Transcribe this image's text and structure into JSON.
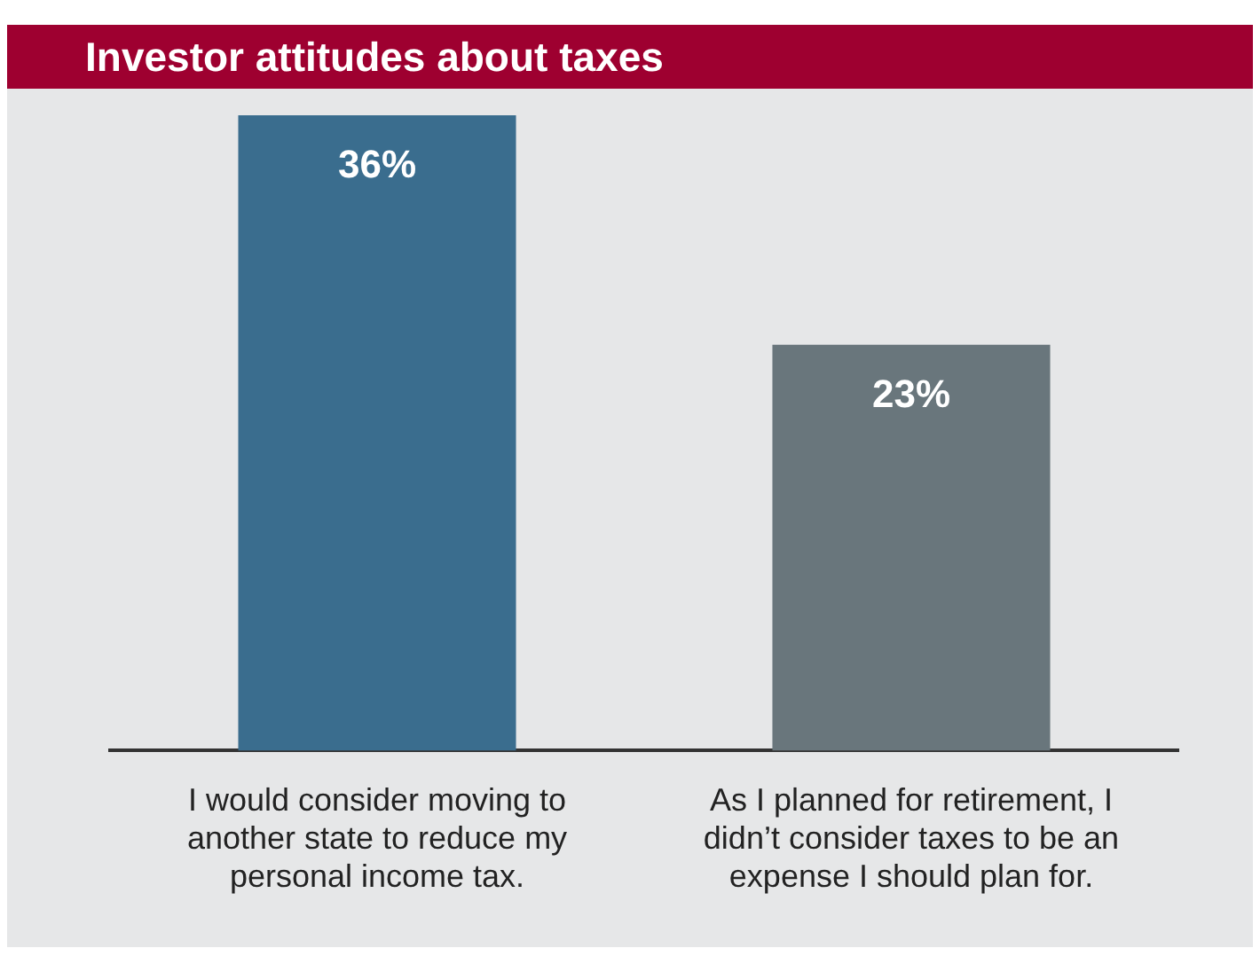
{
  "chart_data": {
    "type": "bar",
    "title": "Investor attitudes about taxes",
    "categories": [
      "I would consider moving to another state to reduce my personal income tax.",
      "As I planned for retirement, I didn’t consider taxes to be an expense I should plan for."
    ],
    "values": [
      36,
      23
    ],
    "colors": [
      "#3a6d8e",
      "#69767c"
    ],
    "value_labels": [
      "36%",
      "23%"
    ],
    "grid": false,
    "legend": false
  }
}
